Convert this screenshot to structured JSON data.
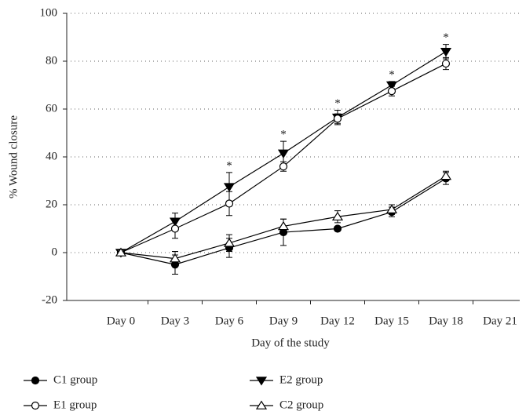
{
  "chart_data": {
    "type": "line",
    "x_label": "Day of the study",
    "y_label": "% Wound closure",
    "categories": [
      "Day 0",
      "Day 3",
      "Day 6",
      "Day 9",
      "Day 12",
      "Day 15",
      "Day 18",
      "Day 21"
    ],
    "ylim": [
      -20,
      100
    ],
    "yticks": [
      -20,
      0,
      20,
      40,
      60,
      80,
      100
    ],
    "grid": true,
    "significance": [
      null,
      null,
      "*",
      "*",
      "*",
      "*",
      "*",
      null
    ],
    "series": [
      {
        "name": "C1 group",
        "color": "#000000",
        "marker": "circle-filled",
        "values": [
          0,
          -5,
          2,
          8.5,
          10,
          17,
          31,
          null
        ],
        "errors": [
          0.5,
          4,
          4,
          5.5,
          1,
          2,
          2.5,
          null
        ]
      },
      {
        "name": "E2 group",
        "color": "#000000",
        "marker": "triangle-down-filled",
        "values": [
          0,
          13,
          27.5,
          41.5,
          56.5,
          70,
          84,
          null
        ],
        "errors": [
          0.5,
          3.5,
          6,
          5,
          3,
          1.5,
          3,
          null
        ]
      },
      {
        "name": "E1 group",
        "color": "#000000",
        "marker": "circle-open",
        "values": [
          0,
          10,
          20.5,
          36,
          56,
          67.5,
          79,
          null
        ],
        "errors": [
          0.5,
          4,
          5,
          2,
          2,
          2,
          2.5,
          null
        ]
      },
      {
        "name": "C2 group",
        "color": "#000000",
        "marker": "triangle-up-open",
        "values": [
          0,
          -2.5,
          4,
          11,
          15,
          18,
          32,
          null
        ],
        "errors": [
          0.5,
          3,
          3.5,
          3,
          2.5,
          2,
          2,
          null
        ]
      }
    ]
  }
}
